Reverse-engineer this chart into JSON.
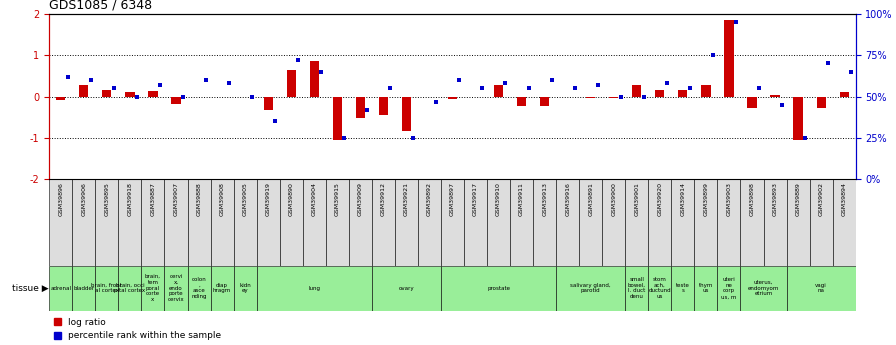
{
  "title": "GDS1085 / 6348",
  "samples": [
    "GSM39896",
    "GSM39906",
    "GSM39895",
    "GSM39918",
    "GSM39887",
    "GSM39907",
    "GSM39888",
    "GSM39908",
    "GSM39905",
    "GSM39919",
    "GSM39890",
    "GSM39904",
    "GSM39915",
    "GSM39909",
    "GSM39912",
    "GSM39921",
    "GSM39892",
    "GSM39897",
    "GSM39917",
    "GSM39910",
    "GSM39911",
    "GSM39913",
    "GSM39916",
    "GSM39891",
    "GSM39900",
    "GSM39901",
    "GSM39920",
    "GSM39914",
    "GSM39899",
    "GSM39903",
    "GSM39898",
    "GSM39893",
    "GSM39889",
    "GSM39902",
    "GSM39894"
  ],
  "log_ratio": [
    -0.08,
    0.28,
    0.15,
    0.1,
    0.14,
    -0.18,
    0.0,
    0.0,
    0.0,
    -0.32,
    0.65,
    0.85,
    -1.05,
    -0.52,
    -0.45,
    -0.82,
    0.0,
    -0.07,
    0.0,
    0.28,
    -0.23,
    -0.22,
    0.0,
    -0.04,
    -0.04,
    0.27,
    0.17,
    0.16,
    0.27,
    1.85,
    -0.28,
    0.05,
    -1.05,
    -0.28,
    0.12
  ],
  "percentile": [
    62,
    60,
    55,
    50,
    57,
    50,
    60,
    58,
    50,
    35,
    72,
    65,
    25,
    42,
    55,
    25,
    47,
    60,
    55,
    58,
    55,
    60,
    55,
    57,
    50,
    50,
    58,
    55,
    75,
    95,
    55,
    45,
    25,
    70,
    65
  ],
  "tissue_groups": [
    {
      "label": "adrenal",
      "start": 0,
      "end": 0
    },
    {
      "label": "bladder",
      "start": 1,
      "end": 1
    },
    {
      "label": "brain, front\nal cortex",
      "start": 2,
      "end": 2
    },
    {
      "label": "brain, occi\npital cortex",
      "start": 3,
      "end": 3
    },
    {
      "label": "brain,\ntem\nporal\ncorte\nx",
      "start": 4,
      "end": 4
    },
    {
      "label": "cervi\nx,\nendo\nporte\ncervix",
      "start": 5,
      "end": 5
    },
    {
      "label": "colon\n,\nasce\nnding",
      "start": 6,
      "end": 6
    },
    {
      "label": "diap\nhragm",
      "start": 7,
      "end": 7
    },
    {
      "label": "kidn\ney",
      "start": 8,
      "end": 8
    },
    {
      "label": "lung",
      "start": 9,
      "end": 13
    },
    {
      "label": "ovary",
      "start": 14,
      "end": 16
    },
    {
      "label": "prostate",
      "start": 17,
      "end": 21
    },
    {
      "label": "salivary gland,\nparotid",
      "start": 22,
      "end": 24
    },
    {
      "label": "small\nbowel,\nI. duct\ndenu",
      "start": 25,
      "end": 25
    },
    {
      "label": "stom\nach,\nductund\nus",
      "start": 26,
      "end": 26
    },
    {
      "label": "teste\ns",
      "start": 27,
      "end": 27
    },
    {
      "label": "thym\nus",
      "start": 28,
      "end": 28
    },
    {
      "label": "uteri\nne\ncorp\nus, m",
      "start": 29,
      "end": 29
    },
    {
      "label": "uterus,\nendomyom\netrium",
      "start": 30,
      "end": 31
    },
    {
      "label": "vagi\nna",
      "start": 32,
      "end": 34
    }
  ],
  "bar_color": "#cc0000",
  "dot_color": "#0000cc",
  "green_color": "#99ee99",
  "gray_color": "#dddddd",
  "bg_color": "#ffffff",
  "label_color": "#000000"
}
